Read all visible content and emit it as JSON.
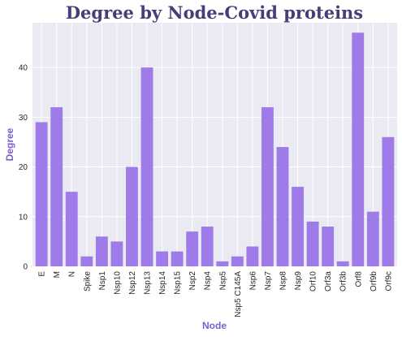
{
  "colors": {
    "bar": "#9e7be8",
    "plot_background": "#eaeaf2",
    "grid": "#ffffff",
    "title": "#4b3b78",
    "axis_label": "#7a5fc9"
  },
  "chart_data": {
    "type": "bar",
    "title": "Degree by Node-Covid proteins",
    "xlabel": "Node",
    "ylabel": "Degree",
    "ylim": [
      0,
      49
    ],
    "yticks": [
      0,
      10,
      20,
      30,
      40
    ],
    "grid": true,
    "categories": [
      "E",
      "M",
      "N",
      "Spike",
      "Nsp1",
      "Nsp10",
      "Nsp12",
      "Nsp13",
      "Nsp14",
      "Nsp15",
      "Nsp2",
      "Nsp4",
      "Nsp5",
      "Nsp5 C145A",
      "Nsp6",
      "Nsp7",
      "Nsp8",
      "Nsp9",
      "Orf10",
      "Orf3a",
      "Orf3b",
      "Orf8",
      "Orf9b",
      "Orf9c"
    ],
    "values": [
      29,
      32,
      15,
      2,
      6,
      5,
      20,
      40,
      3,
      3,
      7,
      8,
      1,
      2,
      4,
      32,
      24,
      16,
      9,
      8,
      1,
      47,
      11,
      26
    ]
  }
}
